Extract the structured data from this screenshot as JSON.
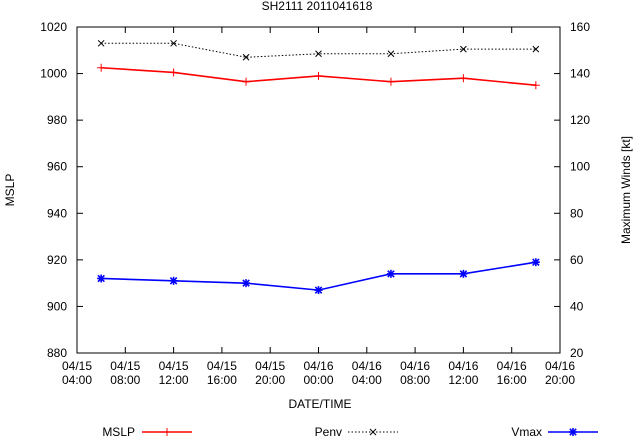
{
  "chart_data": {
    "type": "line",
    "title": "SH2111 2011041618",
    "xlabel": "DATE/TIME",
    "ylabel": "MSLP",
    "y2label": "Maximum Winds [kt]",
    "grid": false,
    "legend_position": "bottom",
    "x_ticks": [
      {
        "hour": 0,
        "line1": "04/15",
        "line2": "04:00"
      },
      {
        "hour": 4,
        "line1": "04/15",
        "line2": "08:00"
      },
      {
        "hour": 8,
        "line1": "04/15",
        "line2": "12:00"
      },
      {
        "hour": 12,
        "line1": "04/15",
        "line2": "16:00"
      },
      {
        "hour": 16,
        "line1": "04/15",
        "line2": "20:00"
      },
      {
        "hour": 20,
        "line1": "04/16",
        "line2": "00:00"
      },
      {
        "hour": 24,
        "line1": "04/16",
        "line2": "04:00"
      },
      {
        "hour": 28,
        "line1": "04/16",
        "line2": "08:00"
      },
      {
        "hour": 32,
        "line1": "04/16",
        "line2": "12:00"
      },
      {
        "hour": 36,
        "line1": "04/16",
        "line2": "16:00"
      },
      {
        "hour": 40,
        "line1": "04/16",
        "line2": "20:00"
      }
    ],
    "xlim": [
      0,
      40
    ],
    "ylim": [
      880,
      1020
    ],
    "y_ticks": [
      880,
      900,
      920,
      940,
      960,
      980,
      1000,
      1020
    ],
    "y2lim": [
      20,
      160
    ],
    "y2_ticks": [
      20,
      40,
      60,
      80,
      100,
      120,
      140,
      160
    ],
    "series": [
      {
        "name": "MSLP",
        "axis": "left",
        "color": "#ff0000",
        "marker": "plus",
        "line": "solid",
        "x": [
          2,
          8,
          14,
          20,
          26,
          32,
          38
        ],
        "y": [
          1002.5,
          1000.5,
          996.5,
          999,
          996.5,
          998,
          995
        ]
      },
      {
        "name": "Penv",
        "axis": "left",
        "color": "#000000",
        "marker": "cross",
        "line": "dotted",
        "x": [
          2,
          8,
          14,
          20,
          26,
          32,
          38
        ],
        "y": [
          1013,
          1013,
          1007,
          1008.5,
          1008.5,
          1010.5,
          1010.5
        ]
      },
      {
        "name": "Vmax",
        "axis": "right",
        "color": "#0000ff",
        "marker": "star",
        "line": "solid",
        "x": [
          2,
          8,
          14,
          20,
          26,
          32,
          38
        ],
        "y": [
          52,
          51,
          50,
          47,
          54,
          54,
          59
        ]
      }
    ]
  }
}
